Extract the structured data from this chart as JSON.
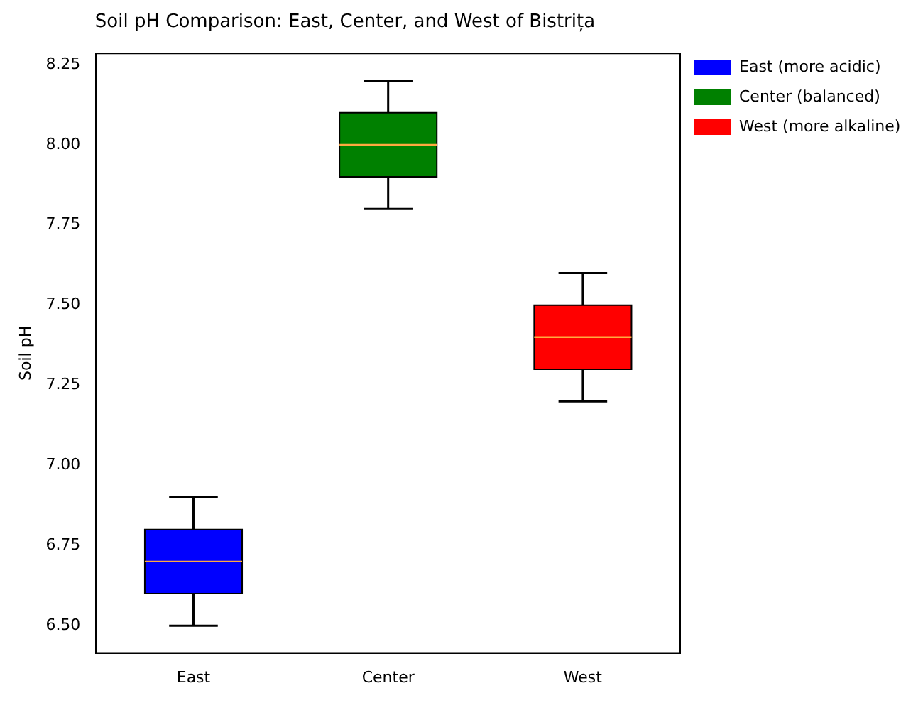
{
  "chart_data": {
    "type": "box",
    "title": "Soil pH Comparison: East, Center, and West of Bistrița",
    "ylabel": "Soil pH",
    "categories": [
      "East",
      "Center",
      "West"
    ],
    "series": [
      {
        "name": "East (more acidic)",
        "color": "#0000ff",
        "boxes": [
          {
            "low": 6.5,
            "q1": 6.6,
            "median": 6.7,
            "q3": 6.8,
            "high": 6.9
          },
          null,
          null
        ]
      },
      {
        "name": "Center (balanced)",
        "color": "#008000",
        "boxes": [
          null,
          {
            "low": 7.8,
            "q1": 7.9,
            "median": 8.0,
            "q3": 8.1,
            "high": 8.2
          },
          null
        ]
      },
      {
        "name": "West (more alkaline)",
        "color": "#ff0000",
        "boxes": [
          null,
          null,
          {
            "low": 7.2,
            "q1": 7.3,
            "median": 7.4,
            "q3": 7.5,
            "high": 7.6
          }
        ]
      }
    ],
    "ylim": [
      6.415,
      8.285
    ],
    "yticks": [
      {
        "value": 6.5,
        "label": "6.50"
      },
      {
        "value": 6.75,
        "label": "6.75"
      },
      {
        "value": 7.0,
        "label": "7.00"
      },
      {
        "value": 7.25,
        "label": "7.25"
      },
      {
        "value": 7.5,
        "label": "7.50"
      },
      {
        "value": 7.75,
        "label": "7.75"
      },
      {
        "value": 8.0,
        "label": "8.00"
      },
      {
        "value": 8.25,
        "label": "8.25"
      }
    ],
    "grid": false,
    "legend": "top right"
  }
}
